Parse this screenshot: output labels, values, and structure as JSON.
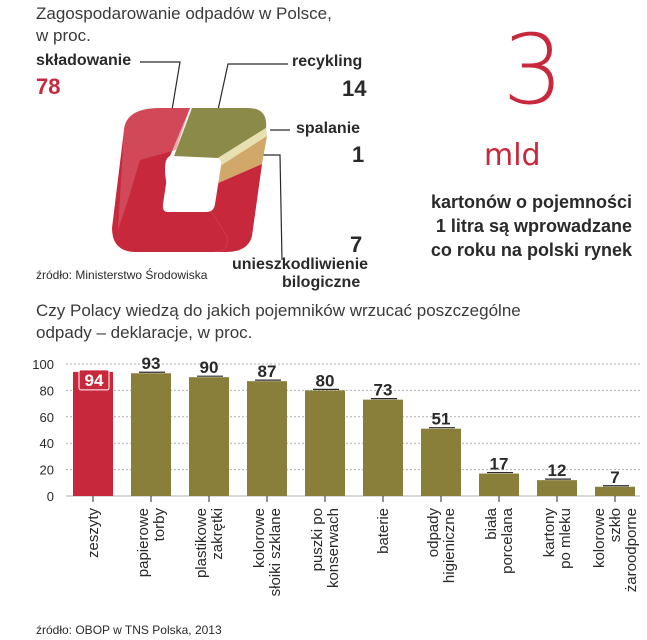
{
  "top_chart": {
    "title_line1": "Zagospodarowanie odpadów w Polsce,",
    "title_line2": "w proc.",
    "source": "źródło: Ministerstwo Środowiska",
    "slices": [
      {
        "label": "składowanie",
        "value": "78"
      },
      {
        "label": "recykling",
        "value": "14"
      },
      {
        "label": "spalanie",
        "value": "1"
      },
      {
        "label_line1": "unieszkodliwienie",
        "label_line2": "bilogiczne",
        "value": "7"
      }
    ],
    "colors": {
      "skladowanie": "#c8283c",
      "recykling": "#8c8a48",
      "spalanie": "#e8e0b0",
      "biologiczne": "#d2a86a"
    }
  },
  "fact": {
    "big_number": "3",
    "unit": "mld",
    "line1": "kartonów o pojemności",
    "line2": "1 litra są wprowadzane",
    "line3": "co roku na polski rynek"
  },
  "bar_chart_section": {
    "title_line1": "Czy Polacy wiedzą do jakich pojemników wrzucać poszczególne",
    "title_line2": "odpady – deklaracje, w proc.",
    "source": "źródło: OBOP w TNS Polska, 2013"
  },
  "chart_data": {
    "type": "bar",
    "categories": [
      [
        "zeszyty"
      ],
      [
        "papierowe",
        "torby"
      ],
      [
        "plastikowe",
        "zakrętki"
      ],
      [
        "kolorowe",
        "słoiki szklane"
      ],
      [
        "puszki po",
        "konserwach"
      ],
      [
        "baterie"
      ],
      [
        "odpady",
        "higieniczne"
      ],
      [
        "biała",
        "porcelana"
      ],
      [
        "kartony",
        "po mleku"
      ],
      [
        "kolorowe",
        "szkło",
        "żaroodporne"
      ]
    ],
    "values": [
      94,
      93,
      90,
      87,
      80,
      73,
      51,
      17,
      12,
      7
    ],
    "value_labels": [
      "94",
      "93",
      "90",
      "87",
      "80",
      "73",
      "51",
      "17",
      "12",
      "7"
    ],
    "highlight_index": 0,
    "ylim": [
      0,
      100
    ],
    "yticks": [
      "0",
      "20",
      "40",
      "60",
      "80",
      "100"
    ],
    "grid": true,
    "colors": {
      "bar": "#8a7f3a",
      "highlight": "#c8283c",
      "grid": "#b0b0b0"
    }
  }
}
